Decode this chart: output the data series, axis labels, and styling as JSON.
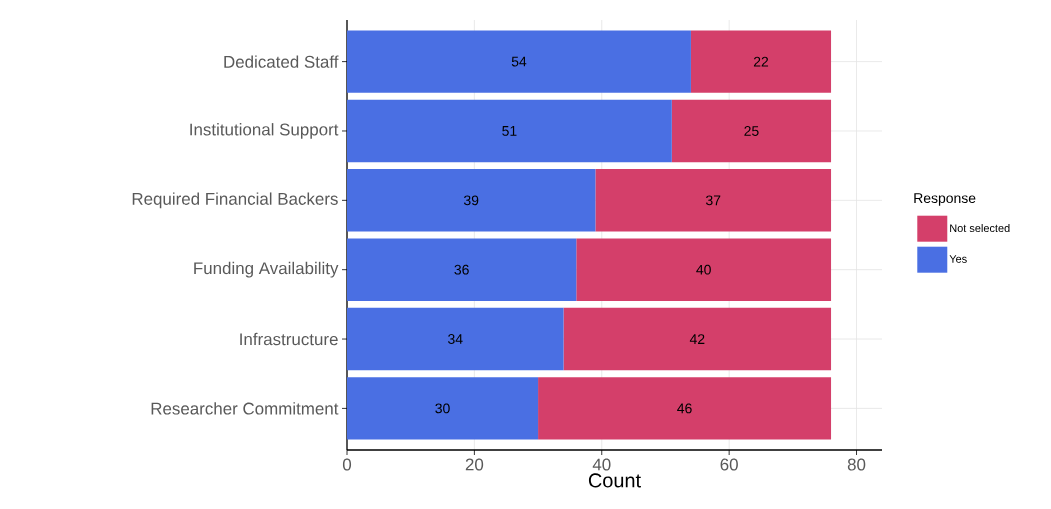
{
  "chart_data": {
    "type": "bar",
    "orientation": "horizontal",
    "stacked": true,
    "xlabel": "Count",
    "legend_title": "Response",
    "categories": [
      "Dedicated Staff",
      "Institutional Support",
      "Required Financial Backers",
      "Funding Availability",
      "Infrastructure",
      "Researcher Commitment"
    ],
    "series": [
      {
        "name": "Yes",
        "color": "#4a6fe3",
        "values": [
          54,
          51,
          39,
          36,
          34,
          30
        ]
      },
      {
        "name": "Not selected",
        "color": "#d43f6a",
        "values": [
          22,
          25,
          37,
          40,
          42,
          46
        ]
      }
    ],
    "xlim": [
      0,
      84
    ],
    "xticks": [
      0,
      20,
      40,
      60,
      80
    ],
    "grid": true,
    "legend": "right",
    "data_labels": true
  }
}
